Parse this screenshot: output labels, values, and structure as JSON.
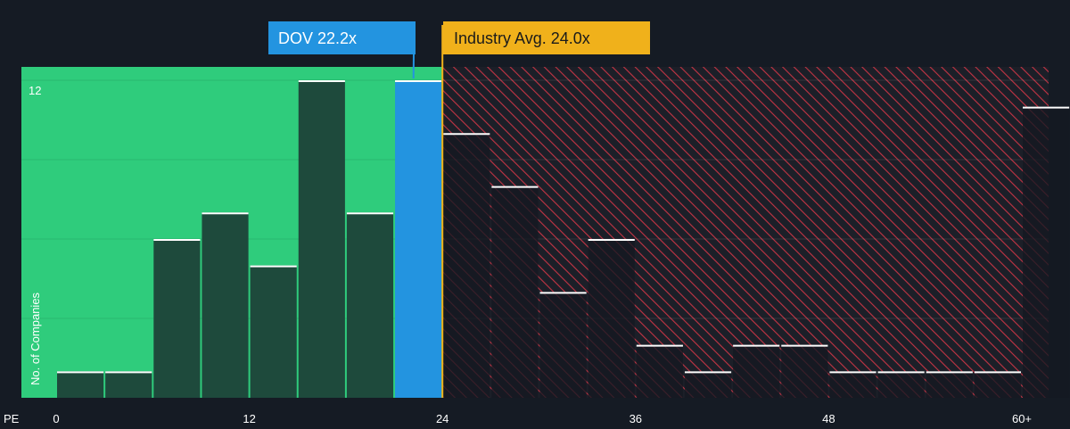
{
  "chart_data": {
    "type": "bar",
    "xlabel": "PE",
    "ylabel": "No. of Companies",
    "x_ticks": [
      {
        "value": 0,
        "label": "0"
      },
      {
        "value": 12,
        "label": "12"
      },
      {
        "value": 24,
        "label": "24"
      },
      {
        "value": 36,
        "label": "36"
      },
      {
        "value": 48,
        "label": "48"
      },
      {
        "value": 60,
        "label": "60+"
      }
    ],
    "y_ticks": [
      {
        "value": 12,
        "label": "12"
      }
    ],
    "xlim": [
      0,
      61.2
    ],
    "ylim": [
      0,
      12.5
    ],
    "bin_width": 3,
    "bins": [
      {
        "start": 0,
        "count": 1
      },
      {
        "start": 3,
        "count": 1
      },
      {
        "start": 6,
        "count": 6
      },
      {
        "start": 9,
        "count": 7
      },
      {
        "start": 12,
        "count": 5
      },
      {
        "start": 15,
        "count": 12
      },
      {
        "start": 18,
        "count": 7
      },
      {
        "start": 21,
        "count": 12
      },
      {
        "start": 24,
        "count": 10
      },
      {
        "start": 27,
        "count": 8
      },
      {
        "start": 30,
        "count": 4
      },
      {
        "start": 33,
        "count": 6
      },
      {
        "start": 36,
        "count": 2
      },
      {
        "start": 39,
        "count": 1
      },
      {
        "start": 42,
        "count": 2
      },
      {
        "start": 45,
        "count": 2
      },
      {
        "start": 48,
        "count": 1
      },
      {
        "start": 51,
        "count": 1
      },
      {
        "start": 54,
        "count": 1
      },
      {
        "start": 57,
        "count": 1
      },
      {
        "start": 60,
        "count": 11
      }
    ],
    "company": {
      "label": "DOV 22.2x",
      "value": 22.2,
      "color": "#2394e0"
    },
    "industry": {
      "label": "Industry Avg. 24.0x",
      "value": 24.0,
      "color": "#f0b11b"
    },
    "grid": true,
    "colors": {
      "background": "#151b24",
      "undervalued_zone": "#2fcc7c",
      "overvalued_stripe": "#d23a4a",
      "bar_fill": "#1e4a3c",
      "bar_top": "#ffffff",
      "company_bar": "#2394e0",
      "axis_text": "#ffffff"
    }
  }
}
